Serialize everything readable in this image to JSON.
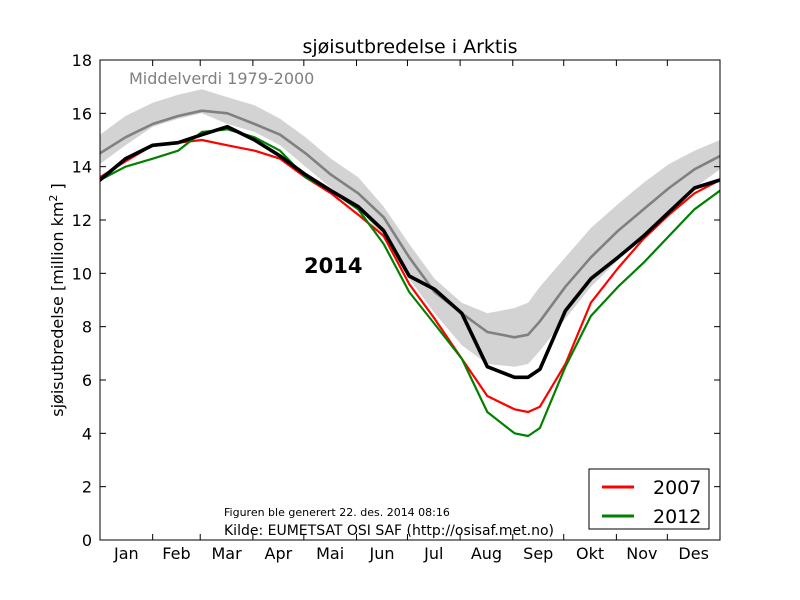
{
  "chart_data": {
    "type": "line",
    "title": "sjøisutbredelse i Arktis",
    "xlabel": "",
    "ylabel": "sjøisutbredelse [million km",
    "ylabel_superscript": "2",
    "ylabel_suffix": " ]",
    "ylim": [
      0,
      18
    ],
    "yticks": [
      "0",
      "2",
      "4",
      "6",
      "8",
      "10",
      "12",
      "14",
      "16",
      "18"
    ],
    "xlim": [
      0,
      365
    ],
    "categories": [
      "Jan",
      "Feb",
      "Mar",
      "Apr",
      "Mai",
      "Jun",
      "Jul",
      "Aug",
      "Sep",
      "Okt",
      "Nov",
      "Des"
    ],
    "grid": false,
    "legend_position": "bottom-right",
    "annotations": {
      "mean_label": "Middelverdi 1979-2000",
      "year_label": "2014",
      "generated": "Figuren ble generert 22. des. 2014 08:16",
      "source": "Kilde: EUMETSAT OSI SAF (http://osisaf.met.no)"
    },
    "x": [
      0,
      15,
      31,
      46,
      60,
      75,
      91,
      106,
      121,
      136,
      152,
      167,
      182,
      197,
      213,
      228,
      244,
      252,
      259,
      274,
      289,
      305,
      320,
      335,
      350,
      365
    ],
    "band": {
      "name": "",
      "color": "#d3d3d3",
      "lower": [
        14.1,
        14.8,
        15.5,
        15.8,
        16.0,
        15.6,
        15.3,
        14.8,
        14.0,
        13.2,
        12.5,
        11.3,
        9.8,
        8.5,
        7.3,
        6.6,
        6.5,
        6.6,
        7.1,
        8.3,
        9.5,
        10.5,
        11.4,
        12.3,
        13.2,
        13.9
      ],
      "upper": [
        15.2,
        15.9,
        16.4,
        16.7,
        16.9,
        16.6,
        16.3,
        15.8,
        15.1,
        14.3,
        13.6,
        12.5,
        11.1,
        9.8,
        8.9,
        8.5,
        8.7,
        8.9,
        9.5,
        10.6,
        11.7,
        12.6,
        13.4,
        14.1,
        14.6,
        15.0
      ]
    },
    "series": [
      {
        "name": "Middelverdi 1979-2000",
        "color": "#808080",
        "legend": false,
        "values": [
          14.5,
          15.1,
          15.6,
          15.9,
          16.1,
          16.0,
          15.6,
          15.2,
          14.5,
          13.7,
          13.0,
          12.1,
          10.6,
          9.3,
          8.5,
          7.8,
          7.6,
          7.7,
          8.2,
          9.5,
          10.6,
          11.6,
          12.4,
          13.2,
          13.9,
          14.4
        ]
      },
      {
        "name": "2007",
        "color": "#ff0000",
        "legend": true,
        "values": [
          13.6,
          14.2,
          14.8,
          14.9,
          15.0,
          14.8,
          14.6,
          14.3,
          13.6,
          13.0,
          12.2,
          11.4,
          9.6,
          8.3,
          6.8,
          5.4,
          4.9,
          4.8,
          5.0,
          6.6,
          8.9,
          10.2,
          11.3,
          12.2,
          13.0,
          13.5
        ]
      },
      {
        "name": "2012",
        "color": "#008000",
        "legend": true,
        "values": [
          13.5,
          14.0,
          14.3,
          14.6,
          15.3,
          15.4,
          15.1,
          14.6,
          13.6,
          13.1,
          12.4,
          11.1,
          9.3,
          8.1,
          6.8,
          4.8,
          4.0,
          3.9,
          4.2,
          6.5,
          8.4,
          9.5,
          10.4,
          11.4,
          12.4,
          13.1
        ]
      },
      {
        "name": "2014",
        "color": "#000000",
        "legend": false,
        "values": [
          13.5,
          14.3,
          14.8,
          14.9,
          15.2,
          15.5,
          15.0,
          14.4,
          13.7,
          13.1,
          12.5,
          11.6,
          9.9,
          9.4,
          8.5,
          6.5,
          6.1,
          6.1,
          6.4,
          8.6,
          9.8,
          10.6,
          11.4,
          12.3,
          13.2,
          13.5
        ]
      }
    ]
  }
}
